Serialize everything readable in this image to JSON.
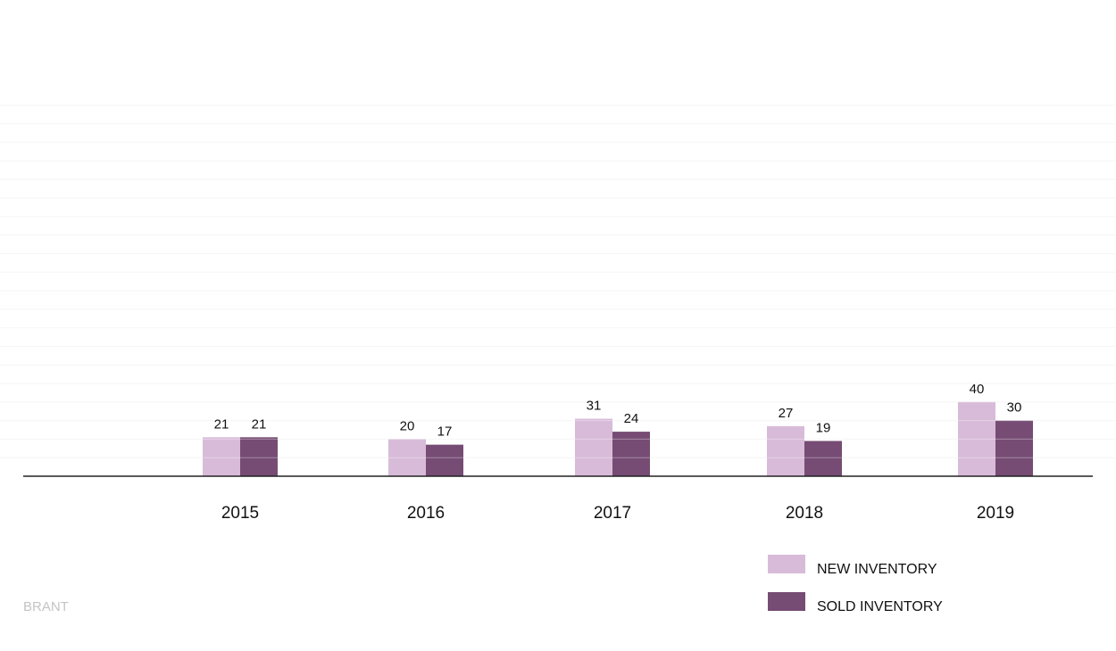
{
  "chart_data": {
    "type": "bar",
    "categories": [
      "2015",
      "2016",
      "2017",
      "2018",
      "2019"
    ],
    "series": [
      {
        "name": "NEW INVENTORY",
        "color": "#d8bbd9",
        "values": [
          21,
          20,
          31,
          27,
          40
        ]
      },
      {
        "name": "SOLD INVENTORY",
        "color": "#764c74",
        "values": [
          21,
          17,
          24,
          19,
          30
        ]
      }
    ],
    "ylim": [
      0,
      200
    ],
    "grid": true,
    "legend_position": "bottom-right",
    "data_labels": true
  },
  "watermark": {
    "text": "BRANT",
    "color": "#c4c4c4"
  }
}
